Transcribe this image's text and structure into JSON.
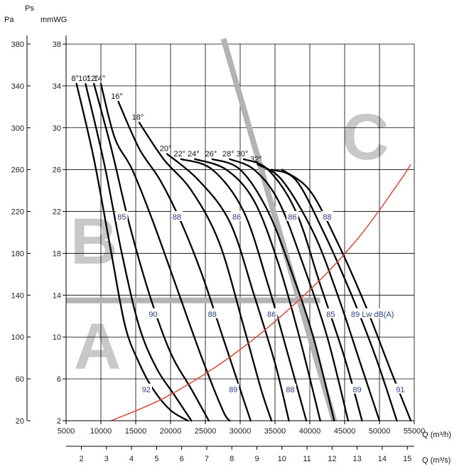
{
  "chart_data": {
    "type": "line",
    "title": "",
    "axis_labels": {
      "pa": "Pa",
      "ps": "Ps",
      "mmwg": "mmWG",
      "q_m3h": "Q (m³/h)",
      "q_m3s": "Q (m³/s)"
    },
    "x_m3h": {
      "min": 5000,
      "max": 55000,
      "ticks": [
        5000,
        10000,
        15000,
        20000,
        25000,
        30000,
        35000,
        40000,
        45000,
        50000,
        55000
      ]
    },
    "x_m3s": {
      "ticks": [
        2,
        3,
        4,
        5,
        6,
        7,
        8,
        9,
        10,
        11,
        12,
        13,
        14,
        15
      ]
    },
    "y_pa": {
      "ticks": [
        20,
        60,
        100,
        140,
        180,
        220,
        260,
        300,
        340,
        380
      ]
    },
    "y_mmwg": {
      "min": 2,
      "max": 38,
      "ticks": [
        2,
        6,
        10,
        14,
        18,
        22,
        26,
        30,
        34,
        38
      ]
    },
    "grid": true,
    "series": [
      {
        "name": "8°",
        "points": [
          [
            6500,
            34.2
          ],
          [
            9000,
            27
          ],
          [
            11500,
            18
          ],
          [
            13500,
            11
          ],
          [
            15500,
            7.5
          ],
          [
            17500,
            5
          ],
          [
            20000,
            3
          ],
          [
            22500,
            2
          ]
        ]
      },
      {
        "name": "10°",
        "points": [
          [
            7800,
            34.2
          ],
          [
            10500,
            26.5
          ],
          [
            13000,
            18
          ],
          [
            15500,
            11
          ],
          [
            18000,
            7
          ],
          [
            20500,
            4.5
          ],
          [
            23000,
            2
          ]
        ]
      },
      {
        "name": "12°",
        "points": [
          [
            9000,
            34.2
          ],
          [
            11500,
            28
          ],
          [
            14000,
            21
          ],
          [
            17000,
            14
          ],
          [
            20000,
            8.5
          ],
          [
            23000,
            5
          ],
          [
            25500,
            2
          ]
        ]
      },
      {
        "name": "14°",
        "points": [
          [
            10000,
            34.2
          ],
          [
            12000,
            29
          ],
          [
            14500,
            26
          ],
          [
            17500,
            21
          ],
          [
            21000,
            14.5
          ],
          [
            24500,
            8
          ],
          [
            27500,
            3
          ],
          [
            28500,
            2
          ]
        ]
      },
      {
        "name": "16°",
        "points": [
          [
            12500,
            32.5
          ],
          [
            15500,
            28
          ],
          [
            18500,
            25
          ],
          [
            21500,
            21
          ],
          [
            24500,
            16
          ],
          [
            27500,
            10
          ],
          [
            30500,
            4
          ],
          [
            31500,
            2
          ]
        ]
      },
      {
        "name": "18°",
        "points": [
          [
            15500,
            30.5
          ],
          [
            19000,
            27
          ],
          [
            23000,
            24
          ],
          [
            27000,
            19
          ],
          [
            30500,
            11
          ],
          [
            33000,
            5
          ],
          [
            34500,
            2
          ]
        ]
      },
      {
        "name": "20°",
        "points": [
          [
            19500,
            27.5
          ],
          [
            24000,
            25
          ],
          [
            28500,
            21
          ],
          [
            32000,
            14
          ],
          [
            35000,
            7.5
          ],
          [
            37000,
            2
          ]
        ]
      },
      {
        "name": "22°",
        "points": [
          [
            21500,
            27
          ],
          [
            26000,
            26
          ],
          [
            30500,
            22
          ],
          [
            34000,
            15
          ],
          [
            37000,
            8
          ],
          [
            39500,
            2
          ]
        ]
      },
      {
        "name": "24°",
        "points": [
          [
            23500,
            27
          ],
          [
            28000,
            26
          ],
          [
            32000,
            23
          ],
          [
            35500,
            17
          ],
          [
            38500,
            10
          ],
          [
            41500,
            2
          ]
        ]
      },
      {
        "name": "26°",
        "points": [
          [
            26000,
            27
          ],
          [
            30000,
            26
          ],
          [
            34000,
            22
          ],
          [
            37500,
            16
          ],
          [
            40500,
            10
          ],
          [
            43500,
            2
          ]
        ]
      },
      {
        "name": "28°",
        "points": [
          [
            28500,
            27
          ],
          [
            32000,
            26
          ],
          [
            35500,
            23
          ],
          [
            39000,
            17
          ],
          [
            42500,
            10
          ],
          [
            45500,
            2
          ]
        ]
      },
      {
        "name": "30°",
        "points": [
          [
            30500,
            27
          ],
          [
            34000,
            26
          ],
          [
            38000,
            22
          ],
          [
            41500,
            15
          ],
          [
            45000,
            8
          ],
          [
            47500,
            2
          ]
        ]
      },
      {
        "name": "32°",
        "points": [
          [
            32500,
            26.5
          ],
          [
            36000,
            25
          ],
          [
            40500,
            20
          ],
          [
            44000,
            14
          ],
          [
            47500,
            7
          ],
          [
            50000,
            2
          ]
        ]
      },
      {
        "name": "",
        "points": [
          [
            34500,
            26
          ],
          [
            38000,
            25
          ],
          [
            42000,
            20
          ],
          [
            46000,
            14
          ],
          [
            49500,
            8
          ],
          [
            52500,
            2
          ]
        ]
      },
      {
        "name": "",
        "points": [
          [
            36000,
            26
          ],
          [
            40000,
            24
          ],
          [
            44000,
            19
          ],
          [
            48000,
            13
          ],
          [
            51500,
            7
          ],
          [
            54500,
            2
          ]
        ]
      }
    ],
    "system_curve": {
      "color": "#e8452e",
      "points": [
        [
          11500,
          2
        ],
        [
          20000,
          4.5
        ],
        [
          30000,
          8.8
        ],
        [
          40000,
          14.5
        ],
        [
          47000,
          19.5
        ],
        [
          52500,
          24.5
        ],
        [
          54500,
          26.5
        ]
      ]
    },
    "db_labels": [
      {
        "text": "85",
        "x": 13000,
        "y": 21.5
      },
      {
        "text": "88",
        "x": 20900,
        "y": 21.5
      },
      {
        "text": "86",
        "x": 29500,
        "y": 21.5
      },
      {
        "text": "86",
        "x": 37500,
        "y": 21.5
      },
      {
        "text": "88",
        "x": 42500,
        "y": 21.5
      },
      {
        "text": "90",
        "x": 17500,
        "y": 12.2
      },
      {
        "text": "88",
        "x": 26000,
        "y": 12.2
      },
      {
        "text": "86",
        "x": 34500,
        "y": 12.2
      },
      {
        "text": "85",
        "x": 43000,
        "y": 12.2
      },
      {
        "text": "89 Lw dB(A)",
        "x": 49000,
        "y": 12.2
      },
      {
        "text": "92",
        "x": 16500,
        "y": 5.0
      },
      {
        "text": "89",
        "x": 29000,
        "y": 5.0
      },
      {
        "text": "88",
        "x": 37200,
        "y": 5.0
      },
      {
        "text": "89",
        "x": 46800,
        "y": 5.0
      },
      {
        "text": "91",
        "x": 53000,
        "y": 5.0
      }
    ],
    "zones": [
      {
        "label": "A",
        "x": 9500,
        "y": 7
      },
      {
        "label": "B",
        "x": 9000,
        "y": 17
      },
      {
        "label": "C",
        "x": 48000,
        "y": 27
      }
    ]
  }
}
